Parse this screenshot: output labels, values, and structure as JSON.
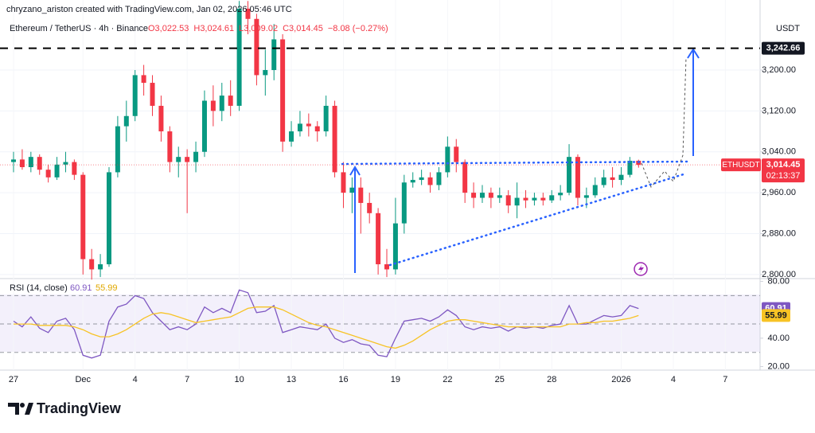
{
  "header": {
    "credit": "chryzano_ariston created with TradingView.com, Jan 02, 2026 05:46 UTC",
    "symbol": "Ethereum / TetherUS · 4h · Binance",
    "ohlc": [
      "O3,022.53",
      "H3,024.61",
      "L3,009.02",
      "C3,014.45",
      "−8.08 (−0.27%)"
    ],
    "currency": "USDT",
    "ticker": "ETHUSDT",
    "countdown": "02:13:37"
  },
  "footer": {
    "brand": "TradingView"
  },
  "chart_data": {
    "type": "candlestick",
    "up_color": "#089981",
    "down_color": "#f23645",
    "open": [
      3020,
      3025,
      3010,
      3030,
      3005,
      2990,
      3015,
      3020,
      2995,
      2830,
      2810,
      2820,
      3000,
      3090,
      3110,
      3190,
      3175,
      3130,
      3080,
      3020,
      3030,
      3020,
      3040,
      3140,
      3120,
      3150,
      3130,
      3320,
      3300,
      3190,
      3200,
      3260,
      3060,
      3080,
      3095,
      3090,
      3080,
      3130,
      3000,
      2960,
      2970,
      2940,
      2920,
      2820,
      2810,
      2900,
      2980,
      2985,
      2990,
      2975,
      3000,
      3050,
      3020,
      2960,
      2950,
      2960,
      2950,
      2955,
      2935,
      2950,
      2945,
      2950,
      2945,
      2955,
      2960,
      3030,
      2950,
      2955,
      2975,
      2990,
      2985,
      2995,
      3022.53
    ],
    "high": [
      3040,
      3045,
      3040,
      3035,
      3015,
      3030,
      3040,
      3025,
      3000,
      2850,
      2840,
      3010,
      3110,
      3140,
      3200,
      3210,
      3190,
      3150,
      3090,
      3050,
      3045,
      3060,
      3160,
      3170,
      3175,
      3180,
      3335,
      3335,
      3310,
      3240,
      3290,
      3270,
      3100,
      3120,
      3115,
      3100,
      3150,
      3140,
      3020,
      2990,
      2990,
      2960,
      2930,
      2850,
      2950,
      2995,
      3000,
      3005,
      3000,
      3010,
      3070,
      3065,
      3025,
      2980,
      2975,
      2970,
      2970,
      2965,
      2980,
      2965,
      2960,
      2960,
      2965,
      2975,
      3055,
      3035,
      2970,
      2990,
      3005,
      3010,
      3010,
      3030,
      3024.61
    ],
    "low": [
      3000,
      3005,
      3000,
      2995,
      2980,
      2985,
      3000,
      2985,
      2800,
      2790,
      2795,
      2815,
      2990,
      3060,
      3100,
      3150,
      3110,
      3060,
      3000,
      2990,
      2920,
      3000,
      3030,
      3090,
      3100,
      3110,
      3120,
      3270,
      3170,
      3150,
      3180,
      3040,
      3050,
      3070,
      3070,
      3060,
      3070,
      2990,
      2930,
      2920,
      2880,
      2900,
      2800,
      2795,
      2800,
      2880,
      2970,
      2975,
      2960,
      2965,
      2990,
      3000,
      2940,
      2930,
      2940,
      2930,
      2940,
      2920,
      2910,
      2930,
      2935,
      2935,
      2940,
      2945,
      2955,
      2935,
      2930,
      2950,
      2970,
      2970,
      2975,
      2990,
      3009.02
    ],
    "close": [
      3025,
      3010,
      3030,
      3005,
      2990,
      3015,
      3020,
      2995,
      2830,
      2810,
      2820,
      3000,
      3090,
      3110,
      3190,
      3175,
      3130,
      3080,
      3020,
      3030,
      3020,
      3040,
      3140,
      3120,
      3150,
      3130,
      3320,
      3300,
      3190,
      3200,
      3260,
      3060,
      3080,
      3095,
      3090,
      3080,
      3130,
      3000,
      2960,
      2970,
      2940,
      2920,
      2820,
      2810,
      2900,
      2980,
      2985,
      2990,
      2975,
      3000,
      3050,
      3020,
      2960,
      2950,
      2960,
      2950,
      2955,
      2935,
      2950,
      2945,
      2950,
      2945,
      2955,
      2960,
      3030,
      2950,
      2955,
      2975,
      2990,
      2985,
      2995,
      3022.53,
      3014.45
    ],
    "last_price": {
      "value": 3014.45,
      "label": "3,014.45"
    },
    "target_line": {
      "value": 3242.66,
      "label": "3,242.66"
    },
    "ylim": [
      2792,
      3337
    ],
    "yticks": [
      {
        "value": 3200,
        "label": "3,200.00"
      },
      {
        "value": 3120,
        "label": "3,120.00"
      },
      {
        "value": 3040,
        "label": "3,040.00"
      },
      {
        "value": 2960,
        "label": "2,960.00"
      },
      {
        "value": 2880,
        "label": "2,880.00"
      },
      {
        "value": 2800,
        "label": "2,800.00"
      }
    ],
    "xlim": [
      -1.56,
      86
    ],
    "xticks": [
      {
        "value": 0,
        "label": "27"
      },
      {
        "value": 8,
        "label": "Dec"
      },
      {
        "value": 14,
        "label": "4"
      },
      {
        "value": 20,
        "label": "7"
      },
      {
        "value": 26,
        "label": "10"
      },
      {
        "value": 32,
        "label": "13"
      },
      {
        "value": 38,
        "label": "16"
      },
      {
        "value": 44,
        "label": "19"
      },
      {
        "value": 50,
        "label": "22"
      },
      {
        "value": 56,
        "label": "25"
      },
      {
        "value": 62,
        "label": "28"
      },
      {
        "value": 70,
        "label": "2026"
      },
      {
        "value": 76,
        "label": "4"
      },
      {
        "value": 82,
        "label": "7"
      }
    ],
    "rsi": {
      "title": "RSI (14, close)",
      "ylim": [
        17.5,
        82
      ],
      "yticks": [
        {
          "value": 80,
          "label": "80.00"
        },
        {
          "value": 40,
          "label": "40.00"
        },
        {
          "value": 20,
          "label": "20.00"
        }
      ],
      "bands": [
        70,
        50,
        30
      ],
      "series": [
        {
          "name": {
            "value": 60.91,
            "label": "60.91"
          },
          "color": "#7e57c2",
          "values": [
            52,
            48,
            55,
            47,
            44,
            52,
            54,
            46,
            28,
            26,
            28,
            52,
            62,
            64,
            70,
            68,
            58,
            52,
            46,
            48,
            46,
            50,
            62,
            58,
            61,
            58,
            74,
            72,
            58,
            59,
            63,
            44,
            46,
            48,
            47,
            46,
            50,
            40,
            37,
            39,
            36,
            35,
            28,
            27,
            40,
            52,
            53,
            54,
            52,
            55,
            60,
            56,
            48,
            46,
            48,
            47,
            48,
            45,
            48,
            47,
            48,
            47,
            49,
            50,
            63,
            50,
            50,
            53,
            56,
            55,
            56,
            63,
            60.91
          ]
        },
        {
          "name": {
            "value": 55.99,
            "label": "55.99"
          },
          "color": "#f7c325",
          "values": [
            50,
            50,
            50,
            49,
            49,
            49,
            49,
            48,
            46,
            43,
            41,
            41,
            43,
            46,
            50,
            54,
            57,
            58,
            57,
            55,
            53,
            51,
            52,
            53,
            54,
            55,
            58,
            61,
            62,
            62,
            62,
            60,
            57,
            54,
            51,
            49,
            48,
            46,
            44,
            42,
            40,
            38,
            36,
            34,
            33,
            35,
            38,
            42,
            46,
            49,
            52,
            53,
            53,
            52,
            51,
            50,
            49,
            48,
            48,
            48,
            48,
            48,
            48,
            48,
            50,
            50,
            51,
            51,
            52,
            52,
            53,
            54,
            55.99
          ]
        }
      ]
    }
  }
}
